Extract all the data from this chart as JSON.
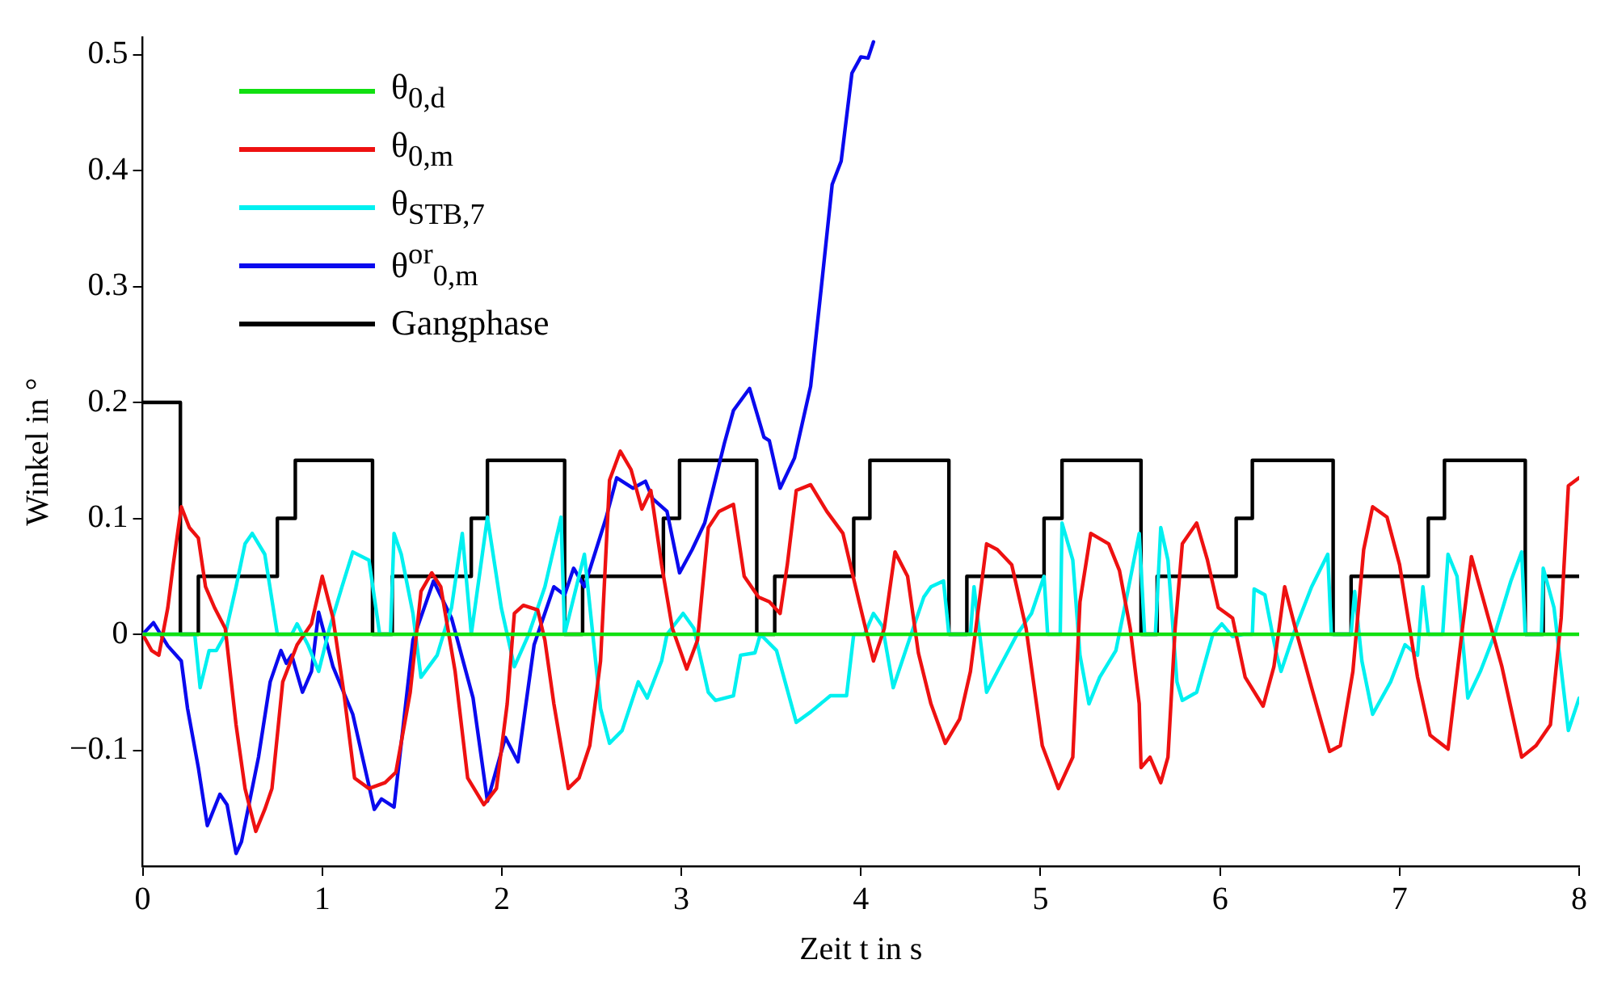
{
  "chart_data": {
    "type": "line",
    "xlabel": "Zeit t in s",
    "ylabel": "Winkel in °",
    "xlim": [
      0,
      8
    ],
    "xticks": [
      0,
      1,
      2,
      3,
      4,
      5,
      6,
      7,
      8
    ],
    "ylim": [
      -0.2,
      0.515
    ],
    "yticks": [
      {
        "value": -0.1,
        "label": "−0.1"
      },
      0,
      0.1,
      0.2,
      0.3,
      0.4,
      0.5
    ],
    "legend": "top left",
    "marker": "none",
    "line_style": "solid",
    "series": [
      {
        "name": "θ$_{0,d}$",
        "color": "#11e011",
        "x": [
          0,
          8
        ],
        "values": [
          0,
          0
        ]
      },
      {
        "name": "θ$_{0,m}$",
        "color": "#ee1111",
        "x": [
          0,
          0.05,
          0.09,
          0.14,
          0.17,
          0.215,
          0.26,
          0.31,
          0.35,
          0.4,
          0.46,
          0.52,
          0.57,
          0.63,
          0.68,
          0.72,
          0.78,
          0.86,
          0.94,
          1.0,
          1.06,
          1.12,
          1.18,
          1.26,
          1.35,
          1.41,
          1.49,
          1.55,
          1.61,
          1.66,
          1.74,
          1.81,
          1.9,
          1.97,
          2.03,
          2.07,
          2.12,
          2.2,
          2.24,
          2.29,
          2.37,
          2.43,
          2.49,
          2.55,
          2.6,
          2.66,
          2.72,
          2.78,
          2.83,
          2.89,
          2.95,
          3.03,
          3.09,
          3.15,
          3.21,
          3.29,
          3.35,
          3.43,
          3.49,
          3.55,
          3.59,
          3.64,
          3.72,
          3.81,
          3.9,
          3.99,
          4.07,
          4.13,
          4.19,
          4.26,
          4.32,
          4.39,
          4.47,
          4.55,
          4.61,
          4.7,
          4.76,
          4.84,
          4.92,
          5.01,
          5.1,
          5.18,
          5.22,
          5.28,
          5.38,
          5.44,
          5.5,
          5.55,
          5.56,
          5.61,
          5.67,
          5.71,
          5.75,
          5.79,
          5.87,
          5.93,
          5.99,
          6.07,
          6.14,
          6.24,
          6.3,
          6.36,
          6.42,
          6.51,
          6.61,
          6.67,
          6.74,
          6.8,
          6.85,
          6.93,
          7.0,
          7.1,
          7.17,
          7.27,
          7.35,
          7.4,
          7.47,
          7.57,
          7.68,
          7.76,
          7.84,
          7.9,
          7.94,
          8.0
        ],
        "values": [
          0,
          -0.014,
          -0.018,
          0.023,
          0.06,
          0.11,
          0.092,
          0.083,
          0.041,
          0.023,
          0.005,
          -0.078,
          -0.133,
          -0.17,
          -0.151,
          -0.133,
          -0.041,
          -0.009,
          0.009,
          0.05,
          0.014,
          -0.05,
          -0.124,
          -0.133,
          -0.128,
          -0.119,
          -0.05,
          0.037,
          0.053,
          0.041,
          -0.032,
          -0.124,
          -0.147,
          -0.133,
          -0.06,
          0.018,
          0.025,
          0.021,
          -0.005,
          -0.06,
          -0.133,
          -0.124,
          -0.096,
          -0.023,
          0.133,
          0.158,
          0.142,
          0.108,
          0.124,
          0.06,
          0.005,
          -0.03,
          -0.005,
          0.092,
          0.106,
          0.112,
          0.05,
          0.032,
          0.028,
          0.018,
          0.06,
          0.124,
          0.129,
          0.106,
          0.087,
          0.028,
          -0.023,
          0.005,
          0.071,
          0.05,
          -0.016,
          -0.06,
          -0.094,
          -0.073,
          -0.032,
          0.078,
          0.073,
          0.06,
          0.005,
          -0.096,
          -0.133,
          -0.106,
          0.028,
          0.087,
          0.078,
          0.055,
          0.005,
          -0.06,
          -0.115,
          -0.106,
          -0.128,
          -0.106,
          0.005,
          0.078,
          0.096,
          0.064,
          0.023,
          0.014,
          -0.037,
          -0.062,
          -0.028,
          0.041,
          0.005,
          -0.046,
          -0.101,
          -0.096,
          -0.032,
          0.073,
          0.11,
          0.101,
          0.06,
          -0.037,
          -0.087,
          -0.099,
          0.005,
          0.067,
          0.028,
          -0.028,
          -0.106,
          -0.096,
          -0.078,
          0.014,
          0.128,
          0.135
        ]
      },
      {
        "name": "θ$_{STB,7}$",
        "color": "#00f0f0",
        "x": [
          0,
          0.29,
          0.32,
          0.37,
          0.41,
          0.46,
          0.52,
          0.57,
          0.61,
          0.68,
          0.75,
          0.83,
          0.86,
          0.92,
          0.98,
          1.04,
          1.11,
          1.17,
          1.26,
          1.32,
          1.38,
          1.4,
          1.44,
          1.505,
          1.55,
          1.64,
          1.72,
          1.78,
          1.83,
          1.92,
          1.997,
          2.07,
          2.15,
          2.24,
          2.33,
          2.35,
          2.46,
          2.55,
          2.6,
          2.67,
          2.76,
          2.81,
          2.89,
          2.92,
          3.01,
          3.07,
          3.15,
          3.19,
          3.29,
          3.33,
          3.41,
          3.44,
          3.53,
          3.64,
          3.72,
          3.83,
          3.92,
          3.96,
          4.02,
          4.07,
          4.12,
          4.18,
          4.26,
          4.35,
          4.39,
          4.46,
          4.49,
          4.61,
          4.63,
          4.7,
          4.76,
          4.87,
          4.95,
          5.02,
          5.04,
          5.11,
          5.12,
          5.18,
          5.22,
          5.27,
          5.33,
          5.42,
          5.48,
          5.55,
          5.58,
          5.64,
          5.67,
          5.71,
          5.76,
          5.79,
          5.87,
          5.96,
          6.01,
          6.07,
          6.13,
          6.18,
          6.19,
          6.25,
          6.31,
          6.34,
          6.42,
          6.51,
          6.6,
          6.62,
          6.73,
          6.75,
          6.79,
          6.85,
          6.95,
          7.03,
          7.1,
          7.13,
          7.16,
          7.24,
          7.27,
          7.32,
          7.38,
          7.45,
          7.53,
          7.62,
          7.68,
          7.7,
          7.79,
          7.8,
          7.86,
          7.94,
          8.0
        ],
        "values": [
          0,
          0,
          -0.046,
          -0.014,
          -0.014,
          0,
          0.041,
          0.078,
          0.087,
          0.069,
          0,
          0,
          0.009,
          -0.009,
          -0.032,
          0.005,
          0.041,
          0.071,
          0.064,
          0,
          0,
          0.087,
          0.069,
          0.018,
          -0.037,
          -0.018,
          0.023,
          0.087,
          0,
          0.101,
          0.023,
          -0.028,
          0,
          0.041,
          0.101,
          0,
          0.069,
          -0.064,
          -0.094,
          -0.083,
          -0.041,
          -0.055,
          -0.023,
          0,
          0.018,
          0.005,
          -0.05,
          -0.057,
          -0.053,
          -0.018,
          -0.016,
          0,
          -0.014,
          -0.076,
          -0.067,
          -0.053,
          -0.053,
          0,
          0,
          0.018,
          0.007,
          -0.046,
          -0.009,
          0.032,
          0.041,
          0.046,
          0,
          0,
          0.041,
          -0.05,
          -0.032,
          0,
          0.018,
          0.05,
          0,
          0,
          0.096,
          0.064,
          -0.018,
          -0.06,
          -0.037,
          -0.014,
          0.032,
          0.087,
          0,
          0,
          0.092,
          0.064,
          -0.041,
          -0.057,
          -0.05,
          0,
          0.009,
          -0.002,
          0,
          0,
          0.039,
          0.034,
          -0.014,
          -0.032,
          0.005,
          0.041,
          0.069,
          0,
          0,
          0.037,
          -0.023,
          -0.069,
          -0.041,
          -0.009,
          -0.018,
          0.041,
          0,
          0,
          0.069,
          0.05,
          -0.055,
          -0.032,
          0,
          0.046,
          0.071,
          0,
          0,
          0.057,
          0.023,
          -0.083,
          -0.055
        ]
      },
      {
        "name": "θ$^{or}$$_{0,m}$",
        "color": "#0a0aee",
        "x": [
          0,
          0.06,
          0.14,
          0.215,
          0.25,
          0.31,
          0.36,
          0.43,
          0.47,
          0.52,
          0.55,
          0.645,
          0.71,
          0.77,
          0.8,
          0.83,
          0.89,
          0.94,
          0.98,
          1.06,
          1.17,
          1.29,
          1.33,
          1.4,
          1.505,
          1.62,
          1.72,
          1.84,
          1.92,
          2.02,
          2.09,
          2.18,
          2.29,
          2.35,
          2.4,
          2.46,
          2.58,
          2.64,
          2.73,
          2.8,
          2.84,
          2.92,
          2.99,
          3.06,
          3.13,
          3.24,
          3.29,
          3.38,
          3.46,
          3.49,
          3.55,
          3.63,
          3.72,
          3.78,
          3.84,
          3.89,
          3.95,
          4.0,
          4.04,
          4.07
        ],
        "values": [
          0,
          0.01,
          -0.01,
          -0.023,
          -0.064,
          -0.115,
          -0.165,
          -0.138,
          -0.147,
          -0.189,
          -0.179,
          -0.106,
          -0.041,
          -0.014,
          -0.025,
          -0.018,
          -0.05,
          -0.032,
          0.019,
          -0.028,
          -0.069,
          -0.151,
          -0.142,
          -0.149,
          -0.005,
          0.046,
          0.014,
          -0.055,
          -0.144,
          -0.089,
          -0.11,
          -0.009,
          0.041,
          0.034,
          0.057,
          0.041,
          0.1,
          0.135,
          0.126,
          0.132,
          0.117,
          0.106,
          0.053,
          0.073,
          0.096,
          0.165,
          0.193,
          0.212,
          0.17,
          0.167,
          0.126,
          0.152,
          0.214,
          0.3,
          0.388,
          0.408,
          0.484,
          0.498,
          0.497,
          0.511
        ]
      },
      {
        "name": "Gangphase",
        "type": "step",
        "color": "#000000",
        "x": [
          0,
          0.21,
          0.31,
          0.75,
          0.85,
          1.28,
          1.39,
          1.83,
          1.92,
          2.35,
          2.45,
          2.9,
          2.99,
          3.42,
          3.52,
          3.96,
          4.05,
          4.49,
          4.59,
          5.02,
          5.12,
          5.56,
          5.65,
          6.09,
          6.18,
          6.63,
          6.73,
          7.16,
          7.25,
          7.7,
          7.8,
          8.0
        ],
        "values": [
          0.2,
          0,
          0.05,
          0.1,
          0.15,
          0,
          0.05,
          0.1,
          0.15,
          0,
          0.05,
          0.1,
          0.15,
          0,
          0.05,
          0.1,
          0.15,
          0,
          0.05,
          0.1,
          0.15,
          0,
          0.05,
          0.1,
          0.15,
          0,
          0.05,
          0.1,
          0.15,
          0,
          0.05,
          0.05
        ]
      }
    ]
  }
}
